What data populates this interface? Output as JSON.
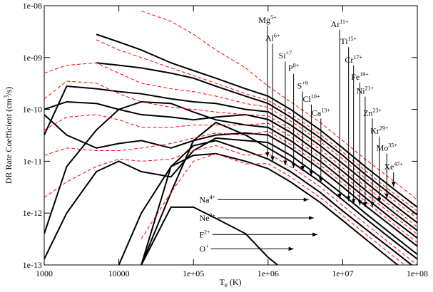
{
  "chart_data": {
    "type": "line",
    "xlabel": {
      "main": "T",
      "sub": "e",
      "rest": " (K)"
    },
    "ylabel": {
      "main": "DR Rate Coefficient (cm",
      "sup": "3",
      "rest": "/s)"
    },
    "xscale": "log",
    "yscale": "log",
    "xlim": [
      1000,
      100000000
    ],
    "ylim": [
      1e-13,
      1e-08
    ],
    "xticks": [
      1000,
      10000,
      {
        "value": 100000,
        "label": "1e+05"
      },
      {
        "value": 1000000,
        "label": "1e+06"
      },
      {
        "value": 10000000,
        "label": "1e+07"
      },
      {
        "value": 100000000,
        "label": "1e+08"
      }
    ],
    "yticks": [
      {
        "value": 1e-13,
        "label": "1e-13"
      },
      {
        "value": 1e-12,
        "label": "1e-12"
      },
      {
        "value": 1e-11,
        "label": "1e-11"
      },
      {
        "value": 1e-10,
        "label": "1e-10"
      },
      {
        "value": 1e-09,
        "label": "1e-09"
      },
      {
        "value": 1e-08,
        "label": "1e-08"
      }
    ],
    "x": [
      1000,
      2000,
      5000,
      10000,
      20000,
      50000,
      100000,
      200000,
      500000,
      1000000,
      2000000,
      5000000,
      10000000,
      20000000,
      50000000,
      100000000
    ],
    "series": [
      {
        "color": "#000000",
        "style": "solid",
        "values": [
          null,
          null,
          2.8e-09,
          2e-09,
          1.4e-09,
          7.9e-10,
          5.6e-10,
          4e-10,
          2.5e-10,
          1.8e-10,
          1e-10,
          4e-11,
          1.8e-11,
          7.9e-12,
          2.8e-12,
          1.3e-12
        ]
      },
      {
        "color": "#000000",
        "style": "solid",
        "values": [
          null,
          null,
          7.9e-10,
          7.1e-10,
          6.3e-10,
          5e-10,
          4e-10,
          2.8e-10,
          1.8e-10,
          1.3e-10,
          7.1e-11,
          2.8e-11,
          1.3e-11,
          5.6e-12,
          2e-12,
          9.2e-13
        ]
      },
      {
        "color": "#000000",
        "style": "solid",
        "values": [
          3.2e-11,
          2.8e-10,
          2.5e-10,
          2.2e-10,
          2e-10,
          1.6e-10,
          1.4e-10,
          1.3e-10,
          1e-10,
          9e-11,
          5e-11,
          2e-11,
          9e-12,
          4e-12,
          1.4e-12,
          6.5e-13
        ]
      },
      {
        "color": "#000000",
        "style": "solid",
        "values": [
          1e-10,
          1.4e-10,
          1.3e-10,
          1e-10,
          7.9e-11,
          7.1e-11,
          6.3e-11,
          7.1e-11,
          7.9e-11,
          6.4e-11,
          3.6e-11,
          1.4e-11,
          6.4e-12,
          2.8e-12,
          9.9e-13,
          4.6e-13
        ]
      },
      {
        "color": "#000000",
        "style": "solid",
        "values": [
          4e-13,
          7.9e-12,
          4e-11,
          1e-10,
          1.4e-10,
          1.3e-10,
          8.9e-11,
          6.3e-11,
          5e-11,
          4.5e-11,
          2.5e-11,
          1e-11,
          4.5e-12,
          2e-12,
          7e-13,
          3.3e-13
        ]
      },
      {
        "color": "#000000",
        "style": "solid",
        "values": [
          7.9e-11,
          3.2e-11,
          1.8e-11,
          2.2e-11,
          2.5e-11,
          1.8e-11,
          2.5e-11,
          3.2e-11,
          3.5e-11,
          3.2e-11,
          1.8e-11,
          7.1e-12,
          3.2e-12,
          1.4e-12,
          5e-13,
          2.3e-13
        ]
      },
      {
        "color": "#000000",
        "style": "solid",
        "values": [
          1.3e-13,
          1e-12,
          6.3e-12,
          1e-11,
          6.3e-12,
          5e-12,
          1.6e-11,
          2.8e-11,
          2.5e-11,
          2.3e-11,
          1.3e-11,
          5e-12,
          2.3e-12,
          1e-12,
          3.5e-13,
          1.6e-13
        ]
      },
      {
        "color": "#000000",
        "style": "solid",
        "values": [
          null,
          null,
          null,
          null,
          1e-13,
          2.5e-12,
          2.5e-11,
          5.6e-11,
          3.2e-11,
          1.8e-11,
          1e-11,
          4e-12,
          1.8e-12,
          7.9e-13,
          2.8e-13,
          1.3e-13
        ]
      },
      {
        "color": "#000000",
        "style": "solid",
        "values": [
          null,
          null,
          null,
          1e-13,
          1e-12,
          7.9e-12,
          2e-11,
          2.5e-11,
          1.6e-11,
          1.1e-11,
          6.3e-12,
          2.5e-12,
          1.1e-12,
          5e-13,
          1.8e-13,
          8.2e-14
        ]
      },
      {
        "color": "#000000",
        "style": "solid",
        "values": [
          null,
          null,
          null,
          null,
          1e-13,
          7.9e-12,
          1.3e-11,
          1.4e-11,
          1e-11,
          7.2e-12,
          4e-12,
          1.6e-12,
          7.2e-13,
          3.2e-13,
          1.1e-13,
          5.2e-14
        ]
      },
      {
        "color": "#000000",
        "style": "solid",
        "values": [
          null,
          null,
          null,
          null,
          1e-13,
          1.3e-12,
          1.3e-12,
          7.9e-13,
          4e-13,
          1.4e-13,
          6.3e-14,
          null,
          null,
          null,
          null,
          null
        ]
      },
      {
        "color": "#ff0000",
        "style": "dashed",
        "values": [
          null,
          null,
          null,
          null,
          7.9e-09,
          5e-09,
          2.8e-09,
          1.4e-09,
          6.3e-10,
          2.8e-10,
          1.4e-10,
          5.6e-11,
          2.5e-11,
          1.1e-11,
          4e-12,
          1.8e-12
        ]
      },
      {
        "color": "#ff0000",
        "style": "dashed",
        "values": [
          null,
          null,
          2.2e-09,
          1.4e-09,
          1e-09,
          6.3e-10,
          4.5e-10,
          3.2e-10,
          2e-10,
          1.5e-10,
          8.3e-11,
          3.3e-11,
          1.5e-11,
          6.6e-12,
          2.3e-12,
          1.1e-12
        ]
      },
      {
        "color": "#ff0000",
        "style": "dashed",
        "values": [
          5e-10,
          7.1e-10,
          7.9e-10,
          5e-10,
          3.2e-10,
          2.5e-10,
          2.2e-10,
          1.8e-10,
          1.3e-10,
          1.1e-10,
          6e-11,
          2.4e-11,
          1.1e-11,
          4.7e-12,
          1.7e-12,
          7.8e-13
        ]
      },
      {
        "color": "#ff0000",
        "style": "dashed",
        "values": [
          1.6e-10,
          3.5e-10,
          3.2e-10,
          2e-10,
          1.4e-10,
          1.1e-10,
          1e-10,
          8.9e-11,
          7.9e-11,
          7.5e-11,
          4.2e-11,
          1.7e-11,
          7.5e-12,
          3.3e-12,
          1.2e-12,
          5.4e-13
        ]
      },
      {
        "color": "#ff0000",
        "style": "dashed",
        "values": [
          4e-11,
          7.1e-11,
          7.9e-11,
          6.3e-11,
          4.5e-11,
          4.5e-11,
          5e-11,
          5e-11,
          5e-11,
          5.4e-11,
          3e-11,
          1.2e-11,
          5.4e-12,
          2.4e-12,
          8.5e-13,
          3.9e-13
        ]
      },
      {
        "color": "#ff0000",
        "style": "dashed",
        "values": [
          1.3e-11,
          1.8e-11,
          1.6e-11,
          1.6e-11,
          1.8e-11,
          2.2e-11,
          2.8e-11,
          3.5e-11,
          3.2e-11,
          3.8e-11,
          2.1e-11,
          8.4e-12,
          3.8e-12,
          1.7e-12,
          5.9e-13,
          2.7e-13
        ]
      },
      {
        "color": "#ff0000",
        "style": "dashed",
        "values": [
          2e-12,
          4e-12,
          7.9e-12,
          1.1e-11,
          1e-11,
          1.1e-11,
          1.6e-11,
          2e-11,
          1.3e-11,
          1.4e-11,
          7.9e-12,
          3.2e-12,
          1.4e-12,
          6.3e-13,
          2.2e-13,
          1e-13
        ]
      },
      {
        "color": "#ff0000",
        "style": "dashed",
        "values": [
          null,
          null,
          null,
          null,
          3.2e-13,
          2.5e-12,
          1e-11,
          1.4e-11,
          8.9e-12,
          9e-12,
          5e-12,
          2e-12,
          9e-13,
          4e-13,
          1.4e-13,
          6.5e-14
        ]
      }
    ],
    "annotations": [
      {
        "text": "Mg",
        "sup": "5+",
        "arrow": "down",
        "x": 980000,
        "y": 4.7e-09,
        "arrow_to": 1.2e-11
      },
      {
        "text": "Al",
        "sup": "6+",
        "arrow": "down",
        "x": 1150000,
        "y": 2.1e-09,
        "arrow_to": 1e-11
      },
      {
        "text": "Si",
        "sup": "+7",
        "arrow": "down",
        "x": 1700000,
        "y": 9.6e-10,
        "arrow_to": 8.3e-12
      },
      {
        "text": "P",
        "sup": "8+",
        "arrow": "down",
        "x": 2200000,
        "y": 5.5e-10,
        "arrow_to": 7.4e-12
      },
      {
        "text": "S",
        "sup": "+9",
        "arrow": "down",
        "x": 2900000,
        "y": 2.5e-10,
        "arrow_to": 6.5e-12
      },
      {
        "text": "Cl",
        "sup": "10+",
        "arrow": "down",
        "x": 3800000,
        "y": 1.4e-10,
        "arrow_to": 5.3e-12
      },
      {
        "text": "Ca",
        "sup": "13+",
        "arrow": "down",
        "x": 5100000,
        "y": 7.6e-11,
        "arrow_to": 3.9e-12
      },
      {
        "text": "Ar",
        "sup": "11+",
        "arrow": "down",
        "x": 9100000,
        "y": 3.9e-09,
        "arrow_to": 1.9e-12
      },
      {
        "text": "Ti",
        "sup": "15+",
        "arrow": "down",
        "x": 12000000,
        "y": 1.8e-09,
        "arrow_to": 1.7e-12
      },
      {
        "text": "Cr",
        "sup": "17+",
        "arrow": "down",
        "x": 14000000,
        "y": 8e-10,
        "arrow_to": 1.5e-12
      },
      {
        "text": "Fe",
        "sup": "19+",
        "arrow": "down",
        "x": 17000000,
        "y": 3.7e-10,
        "arrow_to": 1.4e-12
      },
      {
        "text": "Ni",
        "sup": "21+",
        "arrow": "down",
        "x": 20000000,
        "y": 2e-10,
        "arrow_to": 1.3e-12
      },
      {
        "text": "Zn",
        "sup": "23+",
        "arrow": "down",
        "x": 25000000,
        "y": 7.6e-11,
        "arrow_to": 1.3e-12
      },
      {
        "text": "Kr",
        "sup": "29+",
        "arrow": "down",
        "x": 31000000,
        "y": 3.4e-11,
        "arrow_to": 1.6e-12
      },
      {
        "text": "Mo",
        "sup": "35+",
        "arrow": "down",
        "x": 39000000,
        "y": 1.6e-11,
        "arrow_to": 1.9e-12
      },
      {
        "text": "Xe",
        "sup": "47+",
        "arrow": "down",
        "x": 48000000,
        "y": 6.9e-12,
        "arrow_to": 3.2e-12
      },
      {
        "text": "Na",
        "sup": "4+",
        "arrow": "right",
        "x": 120000,
        "y": 1.6e-12,
        "arrow_to": 3500000
      },
      {
        "text": "Ne",
        "sup": "3+",
        "arrow": "right",
        "x": 120000,
        "y": 7.1e-13,
        "arrow_to": 4100000
      },
      {
        "text": "F",
        "sup": "2+",
        "arrow": "right",
        "x": 120000,
        "y": 3.4e-13,
        "arrow_to": 4600000
      },
      {
        "text": "O",
        "sup": "+",
        "arrow": "right",
        "x": 120000,
        "y": 1.8e-13,
        "arrow_to": 2200000
      }
    ]
  }
}
